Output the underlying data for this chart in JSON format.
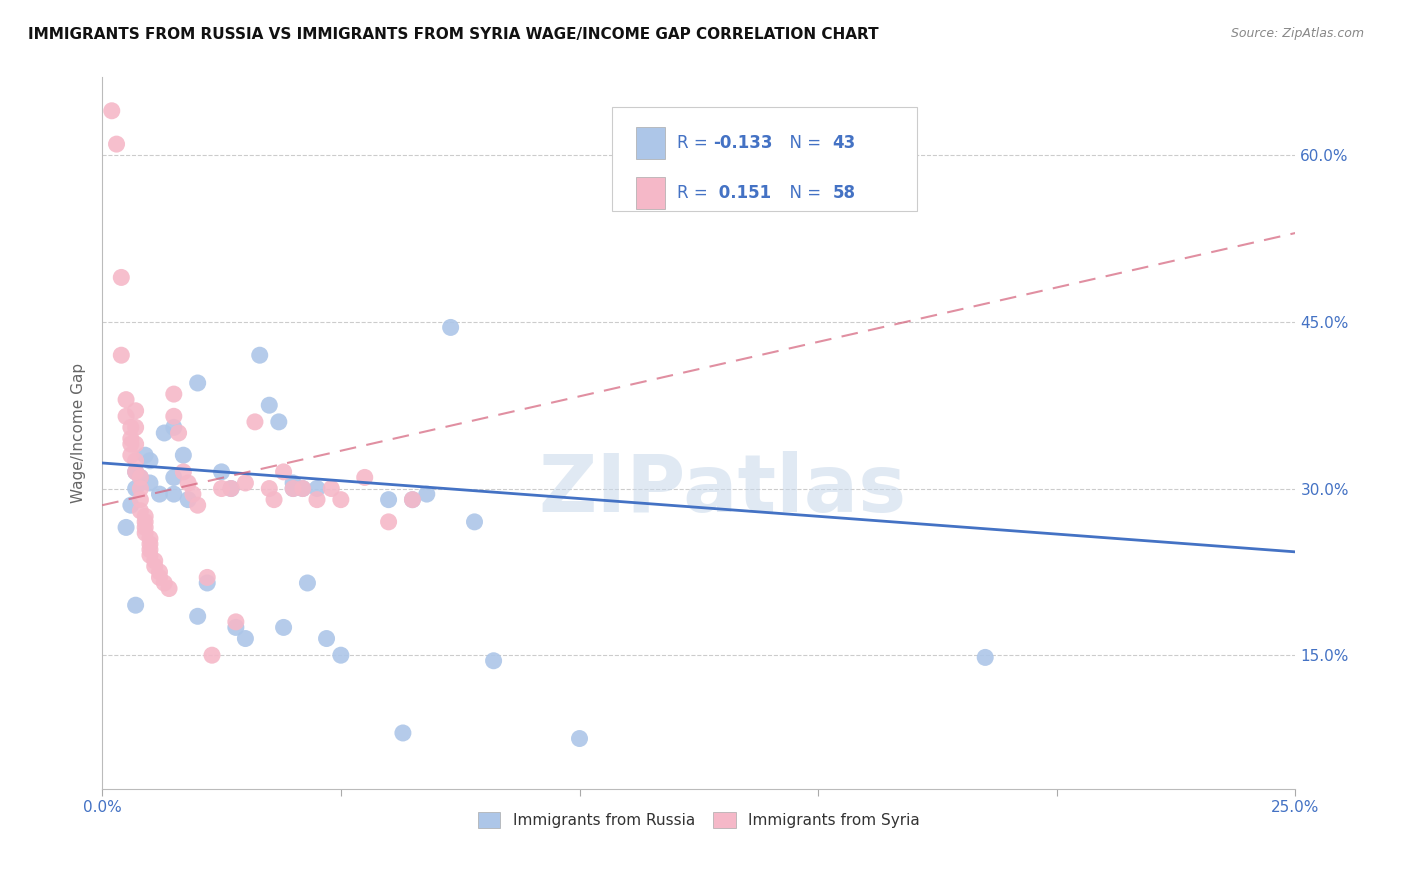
{
  "title": "IMMIGRANTS FROM RUSSIA VS IMMIGRANTS FROM SYRIA WAGE/INCOME GAP CORRELATION CHART",
  "source": "Source: ZipAtlas.com",
  "ylabel": "Wage/Income Gap",
  "xlim": [
    0.0,
    0.25
  ],
  "ylim": [
    0.03,
    0.67
  ],
  "xticks": [
    0.0,
    0.05,
    0.1,
    0.15,
    0.2,
    0.25
  ],
  "yticks": [
    0.15,
    0.3,
    0.45,
    0.6
  ],
  "yticklabels": [
    "15.0%",
    "30.0%",
    "45.0%",
    "60.0%"
  ],
  "russia_R": -0.133,
  "russia_N": 43,
  "syria_R": 0.151,
  "syria_N": 58,
  "russia_color": "#adc6e8",
  "syria_color": "#f5b8c8",
  "russia_line_color": "#4472c4",
  "syria_line_color": "#d4607a",
  "legend_text_color": "#4472c4",
  "watermark": "ZIPatlas",
  "russia_scatter": [
    [
      0.005,
      0.265
    ],
    [
      0.006,
      0.285
    ],
    [
      0.007,
      0.3
    ],
    [
      0.007,
      0.315
    ],
    [
      0.007,
      0.195
    ],
    [
      0.008,
      0.31
    ],
    [
      0.009,
      0.33
    ],
    [
      0.01,
      0.325
    ],
    [
      0.01,
      0.305
    ],
    [
      0.012,
      0.295
    ],
    [
      0.013,
      0.35
    ],
    [
      0.015,
      0.355
    ],
    [
      0.015,
      0.295
    ],
    [
      0.015,
      0.31
    ],
    [
      0.017,
      0.33
    ],
    [
      0.018,
      0.29
    ],
    [
      0.02,
      0.395
    ],
    [
      0.02,
      0.185
    ],
    [
      0.022,
      0.215
    ],
    [
      0.025,
      0.315
    ],
    [
      0.027,
      0.3
    ],
    [
      0.028,
      0.175
    ],
    [
      0.03,
      0.165
    ],
    [
      0.033,
      0.42
    ],
    [
      0.035,
      0.375
    ],
    [
      0.037,
      0.36
    ],
    [
      0.038,
      0.175
    ],
    [
      0.04,
      0.3
    ],
    [
      0.04,
      0.305
    ],
    [
      0.042,
      0.3
    ],
    [
      0.043,
      0.215
    ],
    [
      0.045,
      0.3
    ],
    [
      0.047,
      0.165
    ],
    [
      0.05,
      0.15
    ],
    [
      0.06,
      0.29
    ],
    [
      0.063,
      0.08
    ],
    [
      0.065,
      0.29
    ],
    [
      0.068,
      0.295
    ],
    [
      0.073,
      0.445
    ],
    [
      0.078,
      0.27
    ],
    [
      0.082,
      0.145
    ],
    [
      0.1,
      0.075
    ],
    [
      0.185,
      0.148
    ]
  ],
  "syria_scatter": [
    [
      0.002,
      0.64
    ],
    [
      0.003,
      0.61
    ],
    [
      0.004,
      0.49
    ],
    [
      0.004,
      0.42
    ],
    [
      0.005,
      0.38
    ],
    [
      0.005,
      0.365
    ],
    [
      0.006,
      0.355
    ],
    [
      0.006,
      0.345
    ],
    [
      0.006,
      0.34
    ],
    [
      0.006,
      0.33
    ],
    [
      0.007,
      0.37
    ],
    [
      0.007,
      0.355
    ],
    [
      0.007,
      0.34
    ],
    [
      0.007,
      0.325
    ],
    [
      0.007,
      0.315
    ],
    [
      0.008,
      0.31
    ],
    [
      0.008,
      0.3
    ],
    [
      0.008,
      0.29
    ],
    [
      0.008,
      0.28
    ],
    [
      0.009,
      0.275
    ],
    [
      0.009,
      0.27
    ],
    [
      0.009,
      0.265
    ],
    [
      0.009,
      0.26
    ],
    [
      0.01,
      0.255
    ],
    [
      0.01,
      0.25
    ],
    [
      0.01,
      0.245
    ],
    [
      0.01,
      0.24
    ],
    [
      0.011,
      0.235
    ],
    [
      0.011,
      0.23
    ],
    [
      0.012,
      0.225
    ],
    [
      0.012,
      0.22
    ],
    [
      0.013,
      0.215
    ],
    [
      0.014,
      0.21
    ],
    [
      0.015,
      0.385
    ],
    [
      0.015,
      0.365
    ],
    [
      0.016,
      0.35
    ],
    [
      0.017,
      0.315
    ],
    [
      0.018,
      0.305
    ],
    [
      0.019,
      0.295
    ],
    [
      0.02,
      0.285
    ],
    [
      0.022,
      0.22
    ],
    [
      0.023,
      0.15
    ],
    [
      0.025,
      0.3
    ],
    [
      0.027,
      0.3
    ],
    [
      0.028,
      0.18
    ],
    [
      0.03,
      0.305
    ],
    [
      0.032,
      0.36
    ],
    [
      0.035,
      0.3
    ],
    [
      0.036,
      0.29
    ],
    [
      0.038,
      0.315
    ],
    [
      0.04,
      0.3
    ],
    [
      0.042,
      0.3
    ],
    [
      0.045,
      0.29
    ],
    [
      0.048,
      0.3
    ],
    [
      0.05,
      0.29
    ],
    [
      0.055,
      0.31
    ],
    [
      0.06,
      0.27
    ],
    [
      0.065,
      0.29
    ]
  ],
  "russia_trendline": [
    0.0,
    0.25,
    0.323,
    0.243
  ],
  "syria_trendline": [
    0.0,
    0.25,
    0.285,
    0.53
  ]
}
